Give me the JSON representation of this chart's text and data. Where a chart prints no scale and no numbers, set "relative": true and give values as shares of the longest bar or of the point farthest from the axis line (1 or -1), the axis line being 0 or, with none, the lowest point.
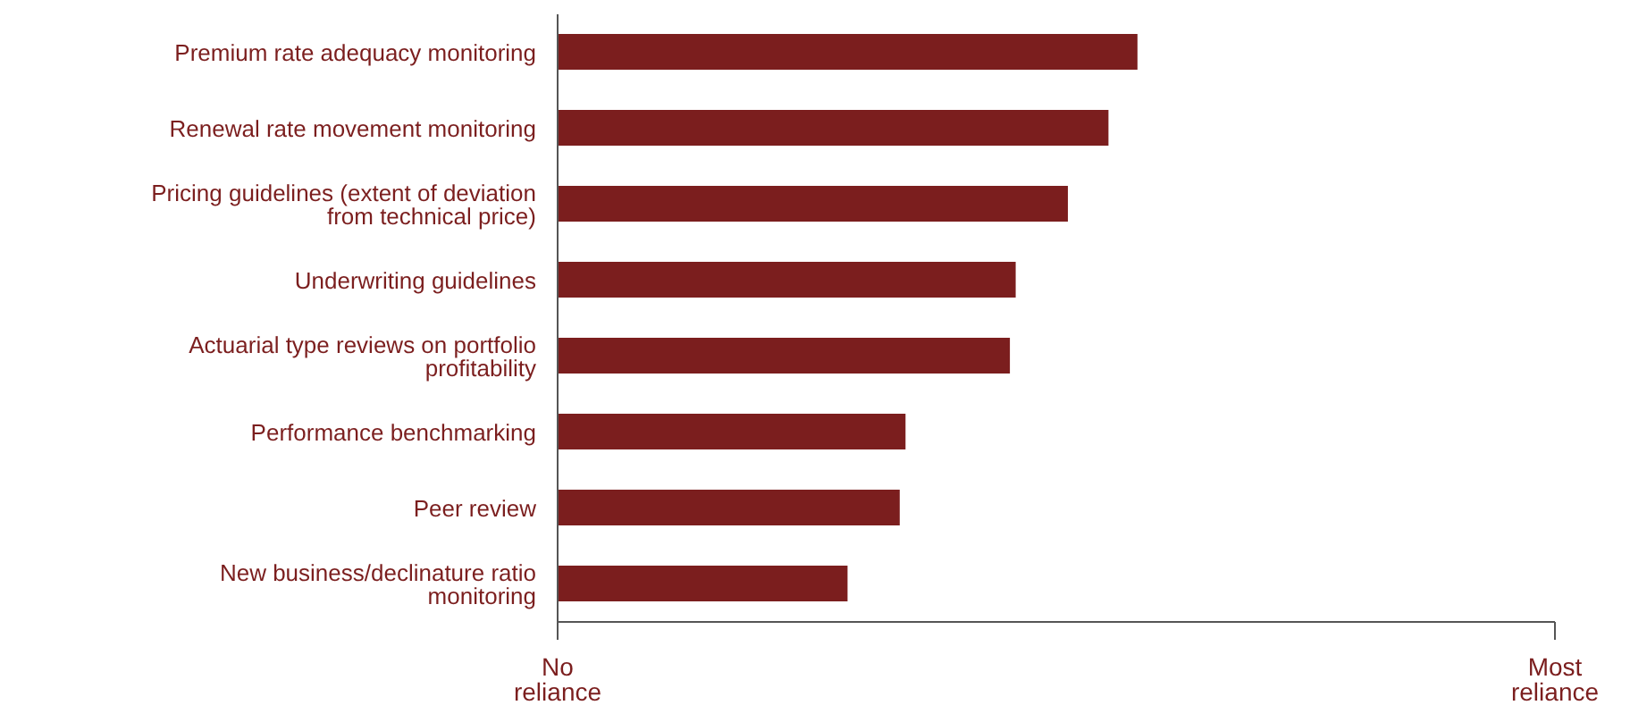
{
  "chart_data": {
    "type": "bar",
    "orientation": "horizontal",
    "relative": true,
    "categories": [
      "Premium rate adequacy monitoring",
      "Renewal rate movement monitoring",
      "Pricing guidelines (extent of deviation from technical price)",
      "Underwriting guidelines",
      "Actuarial type reviews on portfolio profitability",
      "Performance benchmarking",
      "Peer review",
      "New business/declinature ratio monitoring"
    ],
    "values": [
      1,
      0.95,
      0.88,
      0.79,
      0.78,
      0.6,
      0.59,
      0.5
    ],
    "color": "#7b1e1e",
    "annotations": [
      "No reliance",
      "Most reliance"
    ]
  }
}
